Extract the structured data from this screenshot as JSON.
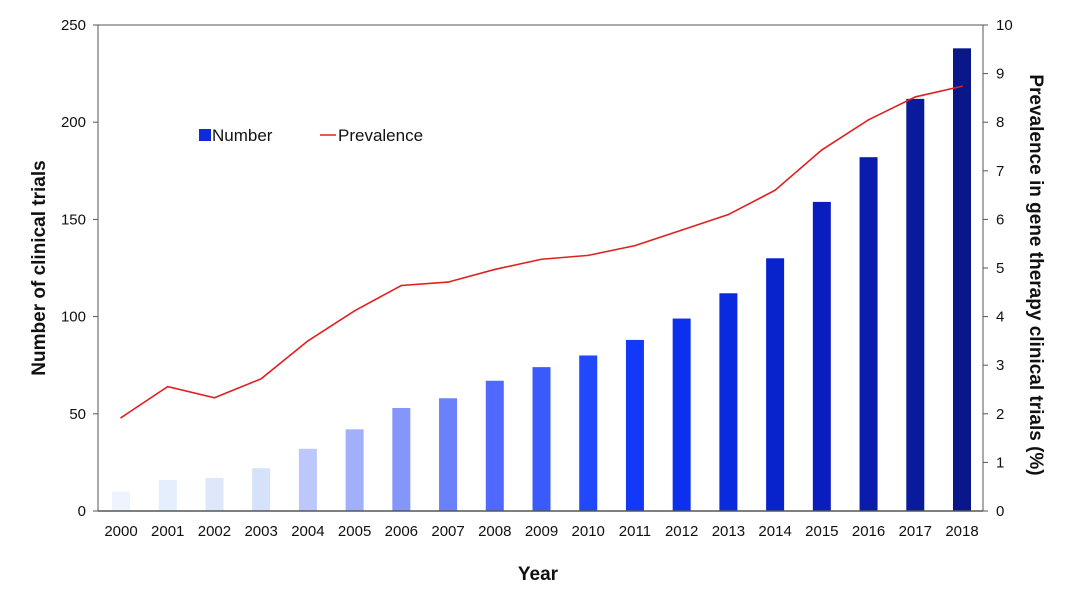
{
  "chart_data": {
    "type": "bar",
    "title": "",
    "xlabel": "Year",
    "ylabel": "Number of clinical trials",
    "y2label": "Prevalence in gene therapy clinical trials (%)",
    "ylim": [
      0,
      250
    ],
    "y2lim": [
      0,
      10
    ],
    "yticks": [
      0,
      50,
      100,
      150,
      200,
      250
    ],
    "y2ticks": [
      0,
      1,
      2,
      3,
      4,
      5,
      6,
      7,
      8,
      9,
      10
    ],
    "grid": false,
    "legend_placement": "top-left",
    "categories": [
      "2000",
      "2001",
      "2002",
      "2003",
      "2004",
      "2005",
      "2006",
      "2007",
      "2008",
      "2009",
      "2010",
      "2011",
      "2012",
      "2013",
      "2014",
      "2015",
      "2016",
      "2017",
      "2018"
    ],
    "series": [
      {
        "name": "Number",
        "type": "bar",
        "axis": "left",
        "values": [
          10,
          16,
          17,
          22,
          32,
          42,
          53,
          58,
          67,
          74,
          80,
          88,
          99,
          112,
          130,
          159,
          182,
          212,
          238
        ],
        "colors": [
          "#eef4fd",
          "#e4eefc",
          "#dfe8fb",
          "#d5e2fa",
          "#bcc8fb",
          "#a2b0fa",
          "#8596fa",
          "#6b80fb",
          "#5069fc",
          "#3a5afc",
          "#2248fd",
          "#1438fa",
          "#0d30f0",
          "#0a2ae0",
          "#0823cc",
          "#0a1ec0",
          "#0a1cae",
          "#0a1a9c",
          "#091788"
        ],
        "legend_color": "#0d2bd6"
      },
      {
        "name": "Prevalence",
        "type": "line",
        "axis": "right",
        "color": "#e02020",
        "values": [
          1.92,
          2.56,
          2.33,
          2.72,
          3.5,
          4.12,
          4.64,
          4.71,
          4.97,
          5.18,
          5.26,
          5.46,
          5.78,
          6.1,
          6.6,
          7.43,
          8.05,
          8.52,
          8.74
        ]
      }
    ]
  }
}
